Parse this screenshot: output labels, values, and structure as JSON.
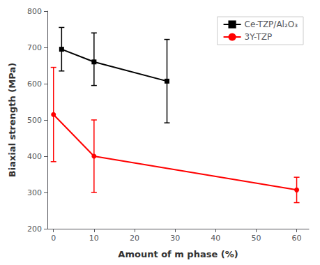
{
  "chart_data": {
    "type": "line",
    "xlabel": "Amount of m phase (%)",
    "ylabel": "Biaxial strength (MPa)",
    "xlim": [
      -1.5,
      63
    ],
    "xticks": [
      0,
      10,
      20,
      30,
      40,
      50,
      60
    ],
    "ylim": [
      200,
      800
    ],
    "yticks": [
      200,
      300,
      400,
      500,
      600,
      700,
      800
    ],
    "grid": false,
    "legend": "upper right",
    "series": [
      {
        "name": "Ce-TZP/Al₂O₃",
        "color": "#000000",
        "marker": "square",
        "line_style": "solid",
        "x": [
          2,
          10,
          28
        ],
        "values": [
          695,
          660,
          607
        ],
        "yerr_lower": [
          60,
          65,
          115
        ],
        "yerr_upper": [
          60,
          80,
          115
        ]
      },
      {
        "name": "3Y-TZP",
        "color": "#ff0000",
        "marker": "circle",
        "line_style": "solid",
        "x": [
          0,
          10,
          60
        ],
        "values": [
          515,
          400,
          307
        ],
        "yerr_lower": [
          130,
          100,
          35
        ],
        "yerr_upper": [
          130,
          100,
          35
        ]
      }
    ]
  }
}
